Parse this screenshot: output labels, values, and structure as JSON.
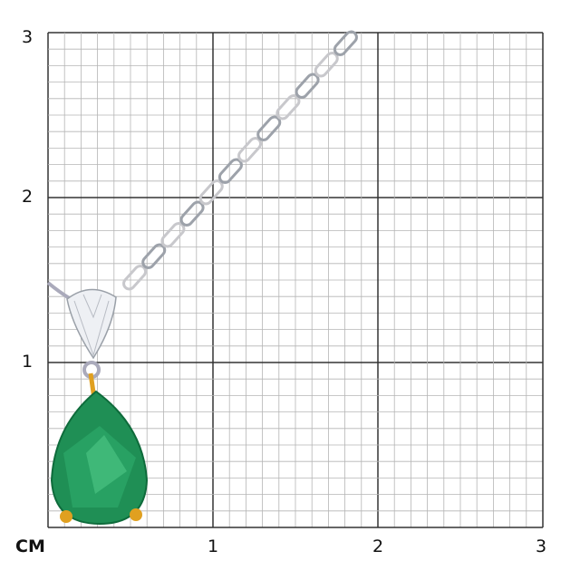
{
  "scale": {
    "unit_label": "CM",
    "x_ticks": [
      "1",
      "2",
      "3"
    ],
    "y_ticks": [
      "1",
      "2",
      "3"
    ],
    "range_cm": [
      0,
      3
    ],
    "minor_step_cm": 0.1
  },
  "colors": {
    "grid_minor": "#b5b5b5",
    "grid_major": "#333333",
    "emerald": "#1f8f55",
    "gold": "#e0a020",
    "metal": "#c8c8cc"
  }
}
